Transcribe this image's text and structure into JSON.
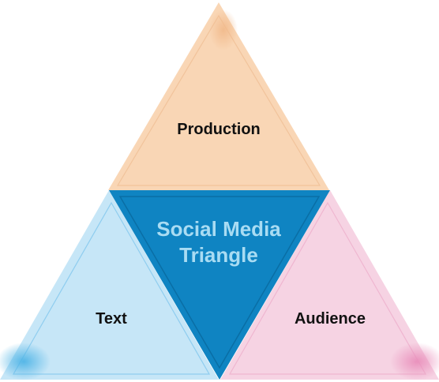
{
  "diagram": {
    "center_line1": "Social Media",
    "center_line2": "Triangle",
    "top": "Production",
    "bottom_left": "Text",
    "bottom_right": "Audience"
  },
  "colors": {
    "production": "#f9d6b5",
    "production_outline": "#f1c39b",
    "text": "#c6e6f7",
    "text_outline": "#8fcdef",
    "audience": "#f6d3e3",
    "audience_outline": "#efb6d0",
    "center": "#0f84c2",
    "center_border": "#0a6ea5",
    "center_text": "#a9dcf3"
  },
  "icons": {
    "speckle": "speckle-texture-icon"
  }
}
